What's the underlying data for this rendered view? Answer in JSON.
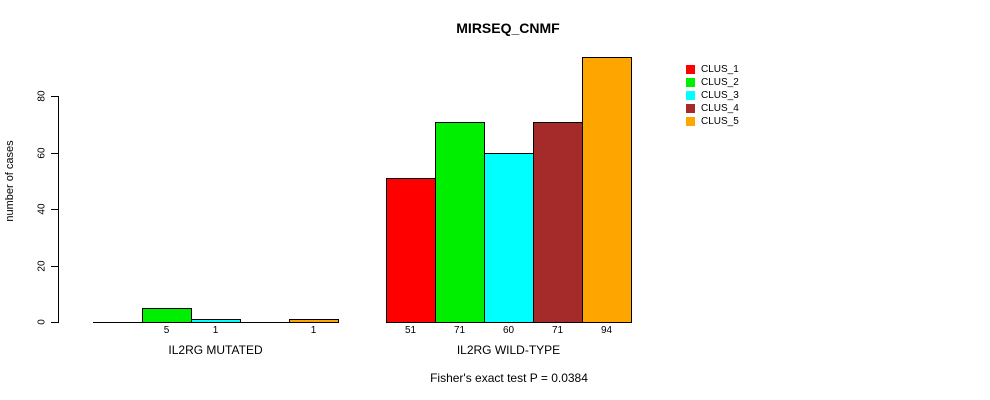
{
  "chart_data": {
    "type": "bar",
    "title": "MIRSEQ_CNMF",
    "ylabel": "number of cases",
    "xlabel": "",
    "categories": [
      "IL2RG MUTATED",
      "IL2RG WILD-TYPE"
    ],
    "series": [
      {
        "name": "CLUS_1",
        "color": "#FF0000",
        "values": [
          0,
          51
        ]
      },
      {
        "name": "CLUS_2",
        "color": "#00EE00",
        "values": [
          5,
          71
        ]
      },
      {
        "name": "CLUS_3",
        "color": "#00FFFF",
        "values": [
          1,
          60
        ]
      },
      {
        "name": "CLUS_4",
        "color": "#A52A2A",
        "values": [
          0,
          71
        ]
      },
      {
        "name": "CLUS_5",
        "color": "#FFA500",
        "values": [
          1,
          94
        ]
      }
    ],
    "bar_value_labels": [
      [
        "",
        "5",
        "1",
        "",
        "1"
      ],
      [
        "51",
        "71",
        "60",
        "71",
        "94"
      ]
    ],
    "yticks": [
      0,
      20,
      40,
      60,
      80
    ],
    "ylim": [
      0,
      94
    ],
    "grid": false,
    "legend_position": "right",
    "legend_entries": [
      "CLUS_1",
      "CLUS_2",
      "CLUS_3",
      "CLUS_4",
      "CLUS_5"
    ],
    "annotation": "Fisher's exact test P = 0.0384",
    "axis_color": "#000000",
    "background_color": "#FFFFFF"
  }
}
